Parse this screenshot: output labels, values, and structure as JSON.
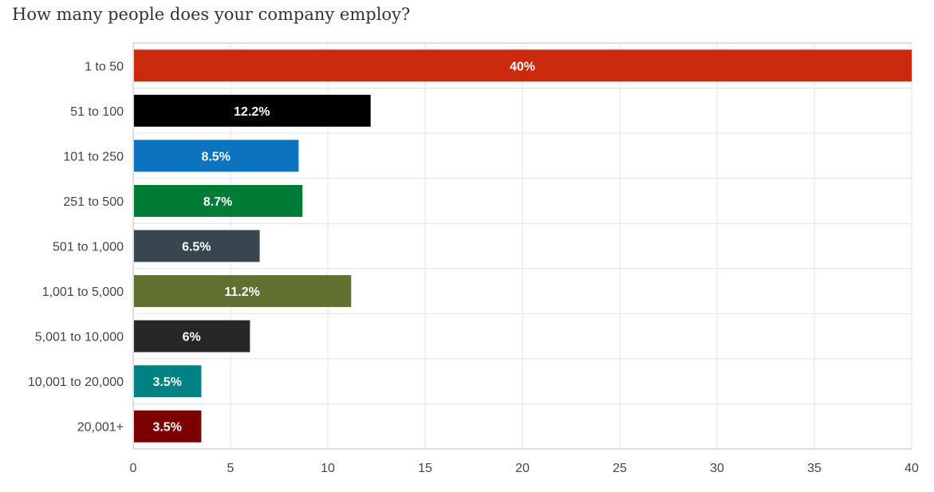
{
  "chart_data": {
    "type": "bar",
    "orientation": "horizontal",
    "title": "How many people does your company employ?",
    "xlabel": "",
    "ylabel": "",
    "xlim": [
      0,
      40
    ],
    "grid": true,
    "legend": "none",
    "categories": [
      "1 to 50",
      "51 to 100",
      "101 to 250",
      "251 to 500",
      "501 to 1,000",
      "1,001 to 5,000",
      "5,001 to 10,000",
      "10,001 to 20,000",
      "20,001+"
    ],
    "values": [
      40,
      12.2,
      8.5,
      8.7,
      6.5,
      11.2,
      6,
      3.5,
      3.5
    ],
    "data_labels": [
      "40%",
      "12.2%",
      "8.5%",
      "8.7%",
      "6.5%",
      "11.2%",
      "6%",
      "3.5%",
      "3.5%"
    ],
    "colors": [
      "#cc2a0f",
      "#000000",
      "#0b73bf",
      "#017c36",
      "#37464f",
      "#5f7030",
      "#252729",
      "#008183",
      "#7d0000"
    ],
    "x_ticks": [
      0,
      5,
      10,
      15,
      20,
      25,
      30,
      35,
      40
    ]
  }
}
